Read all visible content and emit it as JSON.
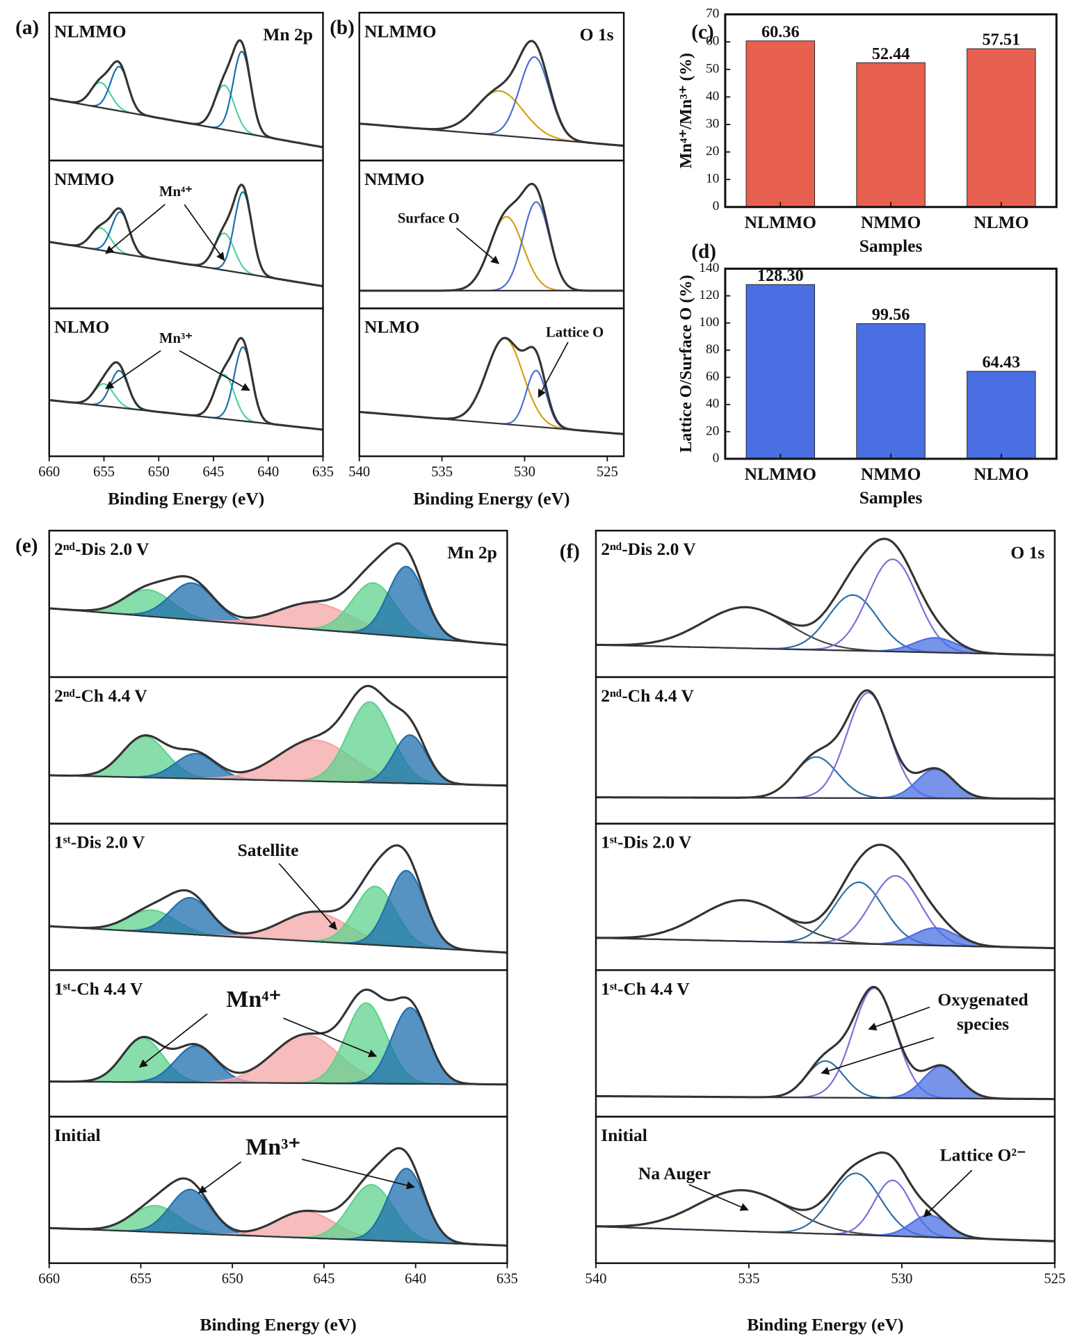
{
  "chart_data": [
    {
      "type": "spectrum",
      "label": "(a)",
      "title": "Mn 2p",
      "xlabel": "Binding Energy (eV)",
      "xlim": [
        660,
        635
      ],
      "xticks": [
        660,
        655,
        650,
        645,
        640,
        635
      ],
      "ylim": [
        0,
        100
      ],
      "panels": [
        {
          "label": "NLMMO",
          "baseline": [
            42,
            9
          ],
          "annotations": [],
          "components": [
            {
              "center": 655.3,
              "height": 17,
              "width": 0.9,
              "color": "#4fd39a",
              "fill": false
            },
            {
              "center": 653.6,
              "height": 30,
              "width": 0.8,
              "color": "#1a6fa8",
              "fill": false
            },
            {
              "center": 644,
              "height": 30,
              "width": 0.9,
              "color": "#4fd39a",
              "fill": false
            },
            {
              "center": 642.4,
              "height": 55,
              "width": 0.8,
              "color": "#1a6fa8",
              "fill": false
            }
          ]
        },
        {
          "label": "NMMO",
          "baseline": [
            45,
            15
          ],
          "annotations": [
            "Mn⁴⁺"
          ],
          "components": [
            {
              "center": 655.3,
              "height": 15,
              "width": 0.9,
              "color": "#4fd39a",
              "fill": false
            },
            {
              "center": 653.5,
              "height": 28,
              "width": 0.8,
              "color": "#1a6fa8",
              "fill": false
            },
            {
              "center": 644,
              "height": 25,
              "width": 0.9,
              "color": "#4fd39a",
              "fill": false
            },
            {
              "center": 642.3,
              "height": 55,
              "width": 0.8,
              "color": "#1a6fa8",
              "fill": false
            }
          ]
        },
        {
          "label": "NLMO",
          "baseline": [
            38,
            18
          ],
          "annotations": [
            "Mn³⁺"
          ],
          "components": [
            {
              "center": 655,
              "height": 15,
              "width": 0.9,
              "color": "#4fd39a",
              "fill": false
            },
            {
              "center": 653.6,
              "height": 25,
              "width": 0.8,
              "color": "#1a6fa8",
              "fill": false
            },
            {
              "center": 644,
              "height": 30,
              "width": 0.9,
              "color": "#4fd39a",
              "fill": false
            },
            {
              "center": 642.3,
              "height": 50,
              "width": 0.8,
              "color": "#1a6fa8",
              "fill": false
            }
          ]
        }
      ]
    },
    {
      "type": "spectrum",
      "label": "(b)",
      "title": "O 1s",
      "xlabel": "Binding Energy (eV)",
      "xlim": [
        540,
        524
      ],
      "xticks": [
        540,
        535,
        530,
        525
      ],
      "ylim": [
        0,
        100
      ],
      "panels": [
        {
          "label": "NLMMO",
          "baseline": [
            25,
            10
          ],
          "annotations": [],
          "components": [
            {
              "center": 531.5,
              "height": 30,
              "width": 1.4,
              "color": "#d4a017",
              "fill": false
            },
            {
              "center": 529.4,
              "height": 55,
              "width": 0.9,
              "color": "#4a6fd0",
              "fill": false
            }
          ]
        },
        {
          "label": "NMMO",
          "baseline": [
            12,
            12
          ],
          "annotations": [
            "Surface O"
          ],
          "components": [
            {
              "center": 531.1,
              "height": 50,
              "width": 1.0,
              "color": "#d4a017",
              "fill": false
            },
            {
              "center": 529.3,
              "height": 60,
              "width": 0.8,
              "color": "#4a6fd0",
              "fill": false
            }
          ]
        },
        {
          "label": "NLMO",
          "baseline": [
            30,
            15
          ],
          "annotations": [
            "Lattice O"
          ],
          "components": [
            {
              "center": 531.2,
              "height": 58,
              "width": 1.1,
              "color": "#d4a017",
              "fill": false
            },
            {
              "center": 529.3,
              "height": 38,
              "width": 0.6,
              "color": "#4a6fd0",
              "fill": false
            }
          ]
        }
      ]
    },
    {
      "type": "bar",
      "label": "(c)",
      "ylabel": "Mn⁴⁺/Mn³⁺ (%)",
      "xlabel": "Samples",
      "categories": [
        "NLMMO",
        "NMMO",
        "NLMO"
      ],
      "values": [
        60.36,
        52.44,
        57.51
      ],
      "color": "#e8604f",
      "ylim": [
        0,
        70
      ],
      "yticks": [
        0,
        10,
        20,
        30,
        40,
        50,
        60,
        70
      ]
    },
    {
      "type": "bar",
      "label": "(d)",
      "ylabel": "Lattice O/Surface O (%)",
      "xlabel": "Samples",
      "categories": [
        "NLMMO",
        "NMMO",
        "NLMO"
      ],
      "values": [
        128.3,
        99.56,
        64.43
      ],
      "value_labels": [
        "128.30",
        "99.56",
        "64.43"
      ],
      "color": "#4a6fe3",
      "ylim": [
        0,
        140
      ],
      "yticks": [
        0,
        20,
        40,
        60,
        80,
        100,
        120,
        140
      ]
    },
    {
      "type": "spectrum",
      "label": "(e)",
      "title": "Mn 2p",
      "xlabel": "Binding Energy (eV)",
      "xlim": [
        660,
        635
      ],
      "xticks": [
        660,
        655,
        650,
        645,
        640,
        635
      ],
      "ylim": [
        0,
        100
      ],
      "panels": [
        {
          "label": "2ⁿᵈ-Dis 2.0 V",
          "baseline": [
            47,
            22
          ],
          "annotations": [],
          "components": [
            {
              "center": 654.6,
              "height": 18,
              "width": 1.3,
              "color": "#5fd38d",
              "fill": true
            },
            {
              "center": 652.2,
              "height": 25,
              "width": 1.2,
              "color": "#1f6fae",
              "fill": true
            },
            {
              "center": 645.5,
              "height": 18,
              "width": 2,
              "color": "#f4a6a6",
              "fill": true
            },
            {
              "center": 642.3,
              "height": 35,
              "width": 1.2,
              "color": "#5fd38d",
              "fill": true
            },
            {
              "center": 640.5,
              "height": 48,
              "width": 1.0,
              "color": "#1f6fae",
              "fill": true
            }
          ]
        },
        {
          "label": "2ⁿᵈ-Ch 4.4 V",
          "baseline": [
            33,
            26
          ],
          "annotations": [],
          "components": [
            {
              "center": 654.8,
              "height": 28,
              "width": 1.2,
              "color": "#5fd38d",
              "fill": true
            },
            {
              "center": 652,
              "height": 17,
              "width": 1.1,
              "color": "#1f6fae",
              "fill": true
            },
            {
              "center": 645.5,
              "height": 28,
              "width": 2,
              "color": "#f4a6a6",
              "fill": true
            },
            {
              "center": 642.5,
              "height": 55,
              "width": 1.2,
              "color": "#5fd38d",
              "fill": true
            },
            {
              "center": 640.3,
              "height": 33,
              "width": 0.9,
              "color": "#1f6fae",
              "fill": true
            }
          ]
        },
        {
          "label": "1ˢᵗ-Dis 2.0 V",
          "baseline": [
            30,
            12
          ],
          "annotations": [
            "Satellite"
          ],
          "components": [
            {
              "center": 654.4,
              "height": 15,
              "width": 1.3,
              "color": "#5fd38d",
              "fill": true
            },
            {
              "center": 652.3,
              "height": 25,
              "width": 1.1,
              "color": "#1f6fae",
              "fill": true
            },
            {
              "center": 645.5,
              "height": 20,
              "width": 1.8,
              "color": "#f4a6a6",
              "fill": true
            },
            {
              "center": 642.2,
              "height": 40,
              "width": 1.1,
              "color": "#5fd38d",
              "fill": true
            },
            {
              "center": 640.5,
              "height": 52,
              "width": 1.0,
              "color": "#1f6fae",
              "fill": true
            }
          ]
        },
        {
          "label": "1ˢᵗ-Ch 4.4 V",
          "baseline": [
            24,
            22
          ],
          "annotations": [
            "Mn⁴⁺"
          ],
          "components": [
            {
              "center": 654.9,
              "height": 30,
              "width": 1.1,
              "color": "#5fd38d",
              "fill": true
            },
            {
              "center": 652,
              "height": 25,
              "width": 1.1,
              "color": "#1f6fae",
              "fill": true
            },
            {
              "center": 646,
              "height": 33,
              "width": 1.8,
              "color": "#f4a6a6",
              "fill": true
            },
            {
              "center": 642.7,
              "height": 55,
              "width": 1.1,
              "color": "#5fd38d",
              "fill": true
            },
            {
              "center": 640.3,
              "height": 52,
              "width": 1.0,
              "color": "#1f6fae",
              "fill": true
            }
          ]
        },
        {
          "label": "Initial",
          "baseline": [
            24,
            12
          ],
          "annotations": [
            "Mn³⁺"
          ],
          "components": [
            {
              "center": 654.2,
              "height": 18,
              "width": 1.3,
              "color": "#5fd38d",
              "fill": true
            },
            {
              "center": 652.3,
              "height": 30,
              "width": 1.1,
              "color": "#1f6fae",
              "fill": true
            },
            {
              "center": 646,
              "height": 18,
              "width": 1.6,
              "color": "#f4a6a6",
              "fill": true
            },
            {
              "center": 642.4,
              "height": 38,
              "width": 1.2,
              "color": "#5fd38d",
              "fill": true
            },
            {
              "center": 640.5,
              "height": 50,
              "width": 1.0,
              "color": "#1f6fae",
              "fill": true
            }
          ]
        }
      ]
    },
    {
      "type": "spectrum",
      "label": "(f)",
      "title": "O 1s",
      "xlabel": "Binding Energy (eV)",
      "xlim": [
        540,
        525
      ],
      "xticks": [
        540,
        535,
        530,
        525
      ],
      "ylim": [
        0,
        100
      ],
      "panels": [
        {
          "label": "2ⁿᵈ-Dis 2.0 V",
          "baseline": [
            22,
            15
          ],
          "annotations": [],
          "components": [
            {
              "center": 535.1,
              "height": 28,
              "width": 1.4,
              "color": "#444444",
              "fill": false
            },
            {
              "center": 531.6,
              "height": 38,
              "width": 0.8,
              "color": "#2a6fa6",
              "fill": false
            },
            {
              "center": 530.3,
              "height": 63,
              "width": 0.8,
              "color": "#7a6fd8",
              "fill": false
            },
            {
              "center": 528.9,
              "height": 10,
              "width": 0.7,
              "color": "#4a6fe3",
              "fill": true
            }
          ]
        },
        {
          "label": "2ⁿᵈ-Ch 4.4 V",
          "baseline": [
            18,
            17
          ],
          "annotations": [],
          "components": [
            {
              "center": 532.8,
              "height": 28,
              "width": 0.7,
              "color": "#2a6fa6",
              "fill": false
            },
            {
              "center": 531.1,
              "height": 72,
              "width": 0.7,
              "color": "#7a6fd8",
              "fill": false
            },
            {
              "center": 528.9,
              "height": 20,
              "width": 0.6,
              "color": "#4a6fe3",
              "fill": true
            }
          ]
        },
        {
          "label": "1ˢᵗ-Dis 2.0 V",
          "baseline": [
            22,
            15
          ],
          "annotations": [],
          "components": [
            {
              "center": 535.2,
              "height": 28,
              "width": 1.4,
              "color": "#444444",
              "fill": false
            },
            {
              "center": 531.4,
              "height": 42,
              "width": 0.8,
              "color": "#2a6fa6",
              "fill": false
            },
            {
              "center": 530.2,
              "height": 47,
              "width": 0.8,
              "color": "#7a6fd8",
              "fill": false
            },
            {
              "center": 528.9,
              "height": 12,
              "width": 0.7,
              "color": "#4a6fe3",
              "fill": true
            }
          ]
        },
        {
          "label": "1ˢᵗ-Ch 4.4 V",
          "baseline": [
            14,
            12
          ],
          "annotations": [
            "Oxygenated",
            "species"
          ],
          "components": [
            {
              "center": 532.5,
              "height": 25,
              "width": 0.6,
              "color": "#2a6fa6",
              "fill": false
            },
            {
              "center": 530.9,
              "height": 75,
              "width": 0.7,
              "color": "#7a6fd8",
              "fill": false
            },
            {
              "center": 528.7,
              "height": 22,
              "width": 0.6,
              "color": "#4a6fe3",
              "fill": true
            }
          ]
        },
        {
          "label": "Initial",
          "baseline": [
            25,
            15
          ],
          "annotations": [
            "Na Auger",
            "Lattice O²⁻"
          ],
          "components": [
            {
              "center": 535.2,
              "height": 28,
              "width": 1.5,
              "color": "#444444",
              "fill": false
            },
            {
              "center": 531.5,
              "height": 42,
              "width": 0.8,
              "color": "#2a6fa6",
              "fill": false
            },
            {
              "center": 530.3,
              "height": 38,
              "width": 0.6,
              "color": "#7a6fd8",
              "fill": false
            },
            {
              "center": 529.1,
              "height": 15,
              "width": 0.6,
              "color": "#4a6fe3",
              "fill": true
            }
          ]
        }
      ]
    }
  ]
}
